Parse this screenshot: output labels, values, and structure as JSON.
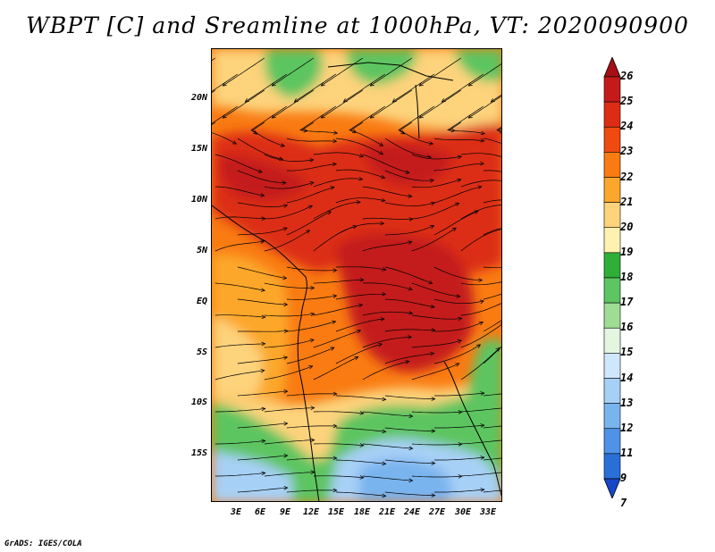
{
  "title": "WBPT [C] and Sreamline at 1000hPa, VT: 2020090900",
  "footer": "GrADS: IGES/COLA",
  "lat_labels": [
    "20N",
    "15N",
    "10N",
    "5N",
    "EQ",
    "5S",
    "10S",
    "15S"
  ],
  "lon_labels": [
    "3E",
    "6E",
    "9E",
    "12E",
    "15E",
    "18E",
    "21E",
    "24E",
    "27E",
    "30E",
    "33E"
  ],
  "colorbar": {
    "labels": [
      "26",
      "25",
      "24",
      "23",
      "22",
      "21",
      "20",
      "19",
      "18",
      "17",
      "16",
      "15",
      "14",
      "13",
      "12",
      "11",
      "9",
      "7"
    ],
    "colors": [
      "#a50f15",
      "#c41a1a",
      "#dc2d14",
      "#f04a10",
      "#f97b12",
      "#fca72c",
      "#fdd37c",
      "#fff2b0",
      "#2fae38",
      "#5dc561",
      "#9fdd95",
      "#e2f6e0",
      "#cfe7fb",
      "#a7d0f6",
      "#79b4ef",
      "#4f93e8",
      "#2a6fd8",
      "#1746c9"
    ]
  }
}
